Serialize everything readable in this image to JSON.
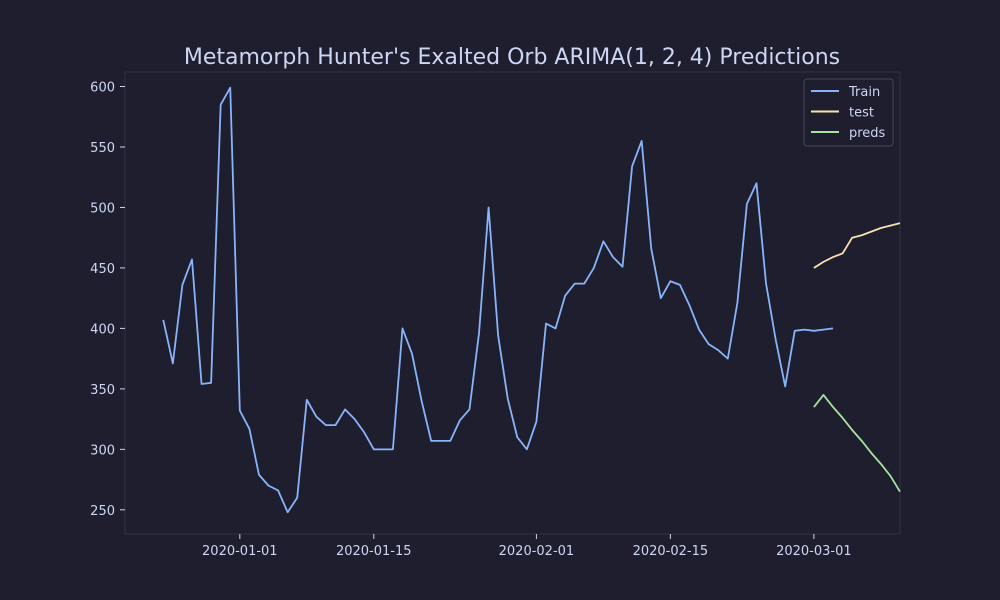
{
  "chart_data": {
    "type": "line",
    "title": "Metamorph Hunter's Exalted Orb ARIMA(1, 2, 4) Predictions",
    "xlabel": "",
    "ylabel": "",
    "x_axis": "date",
    "xlim": [
      "2019-12-20",
      "2020-03-10"
    ],
    "ylim": [
      230,
      612
    ],
    "x_ticks": [
      "2020-01-01",
      "2020-01-15",
      "2020-02-01",
      "2020-02-15",
      "2020-03-01"
    ],
    "y_ticks": [
      250,
      300,
      350,
      400,
      450,
      500,
      550,
      600
    ],
    "grid": false,
    "legend_position": "top-right",
    "series": [
      {
        "name": "Train",
        "color": "#89b4fa",
        "start_date": "2019-12-24",
        "values": [
          407,
          371,
          436,
          457,
          354,
          355,
          585,
          599,
          332,
          317,
          279,
          270,
          266,
          248,
          260,
          341,
          327,
          320,
          320,
          333,
          325,
          314,
          300,
          300,
          300,
          400,
          379,
          340,
          307,
          307,
          307,
          324,
          333,
          396,
          500,
          394,
          342,
          310,
          300,
          323,
          404,
          400,
          427,
          437,
          437,
          450,
          472,
          459,
          451,
          534,
          555,
          466,
          425,
          439,
          436,
          419,
          399,
          387,
          382,
          375,
          421,
          503,
          520,
          437,
          391,
          352,
          398,
          399,
          398,
          399,
          400
        ]
      },
      {
        "name": "test",
        "color": "#f9e2af",
        "start_date": "2020-03-01",
        "values": [
          450,
          455,
          459,
          462,
          475,
          477,
          480,
          483,
          485,
          487
        ]
      },
      {
        "name": "preds",
        "color": "#a6e3a1",
        "start_date": "2020-03-01",
        "values": [
          335,
          345,
          335,
          326,
          316,
          307,
          297,
          288,
          278,
          265
        ]
      }
    ]
  }
}
